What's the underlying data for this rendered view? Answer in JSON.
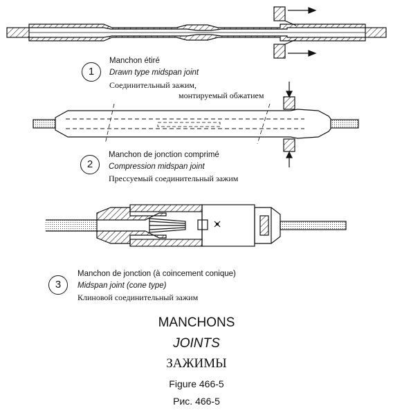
{
  "joints": [
    {
      "number": "1",
      "fr": "Manchon étiré",
      "en": "Drawn type midspan joint",
      "ru_line1": "Соединительный зажим,",
      "ru_line2": "монтируемый обжатием"
    },
    {
      "number": "2",
      "fr": "Manchon de jonction comprimé",
      "en": "Compression midspan joint",
      "ru_line1": "Прессуемый соединительный зажим"
    },
    {
      "number": "3",
      "fr": "Manchon de jonction (à coincement conique)",
      "en": "Midspan joint (cone type)",
      "ru_line1": "Клиновой соединительный зажим"
    }
  ],
  "titles": {
    "fr": "MANCHONS",
    "en": "JOINTS",
    "ru": "ЗАЖИМЫ"
  },
  "figure": {
    "en": "Figure 466-5",
    "ru": "Рис. 466-5"
  }
}
